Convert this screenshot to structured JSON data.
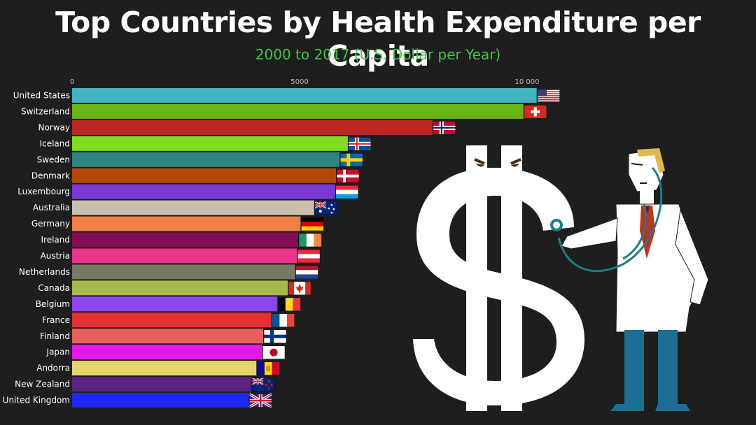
{
  "title": "Top Countries by Health Expenditure per Capita",
  "subtitle": "2000 to 2017 (U.S. Dollar per Year)",
  "chart_data": {
    "type": "bar",
    "orientation": "horizontal",
    "title": "Top Countries by Health Expenditure per Capita",
    "subtitle": "2000 to 2017 (U.S. Dollar per Year)",
    "xlabel": "",
    "ylabel": "",
    "xlim": [
      0,
      10700
    ],
    "ticks": [
      0,
      5000,
      10000
    ],
    "tick_labels": [
      "0",
      "5000",
      "10 000"
    ],
    "grid": false,
    "legend": "none",
    "categories": [
      "United States",
      "Switzerland",
      "Norway",
      "Iceland",
      "Sweden",
      "Denmark",
      "Luxembourg",
      "Australia",
      "Germany",
      "Ireland",
      "Austria",
      "Netherlands",
      "Canada",
      "Belgium",
      "France",
      "Finland",
      "Japan",
      "Andorra",
      "New Zealand",
      "United Kingdom"
    ],
    "values": [
      10210,
      9920,
      7920,
      6060,
      5880,
      5800,
      5780,
      5320,
      5020,
      4970,
      4940,
      4900,
      4740,
      4510,
      4380,
      4200,
      4170,
      4050,
      3940,
      3880
    ],
    "colors": [
      "#41b4c0",
      "#6ab416",
      "#bd2727",
      "#7fdb1f",
      "#2d8584",
      "#b34806",
      "#7a38d6",
      "#c8c0ac",
      "#f08045",
      "#820d55",
      "#e9338a",
      "#777a63",
      "#a9b84a",
      "#8b46ef",
      "#e23030",
      "#ea5f5b",
      "#e617e9",
      "#e3d76b",
      "#5a2283",
      "#1c28ef"
    ],
    "flags": [
      "us",
      "ch",
      "no",
      "is",
      "se",
      "dk",
      "lu",
      "au",
      "de",
      "ie",
      "at",
      "nl",
      "ca",
      "be",
      "fr",
      "fi",
      "jp",
      "ad",
      "nz",
      "gb"
    ]
  },
  "illustration": {
    "icons": [
      "dollar-sign-icon",
      "doctor-icon",
      "stethoscope-icon"
    ]
  }
}
